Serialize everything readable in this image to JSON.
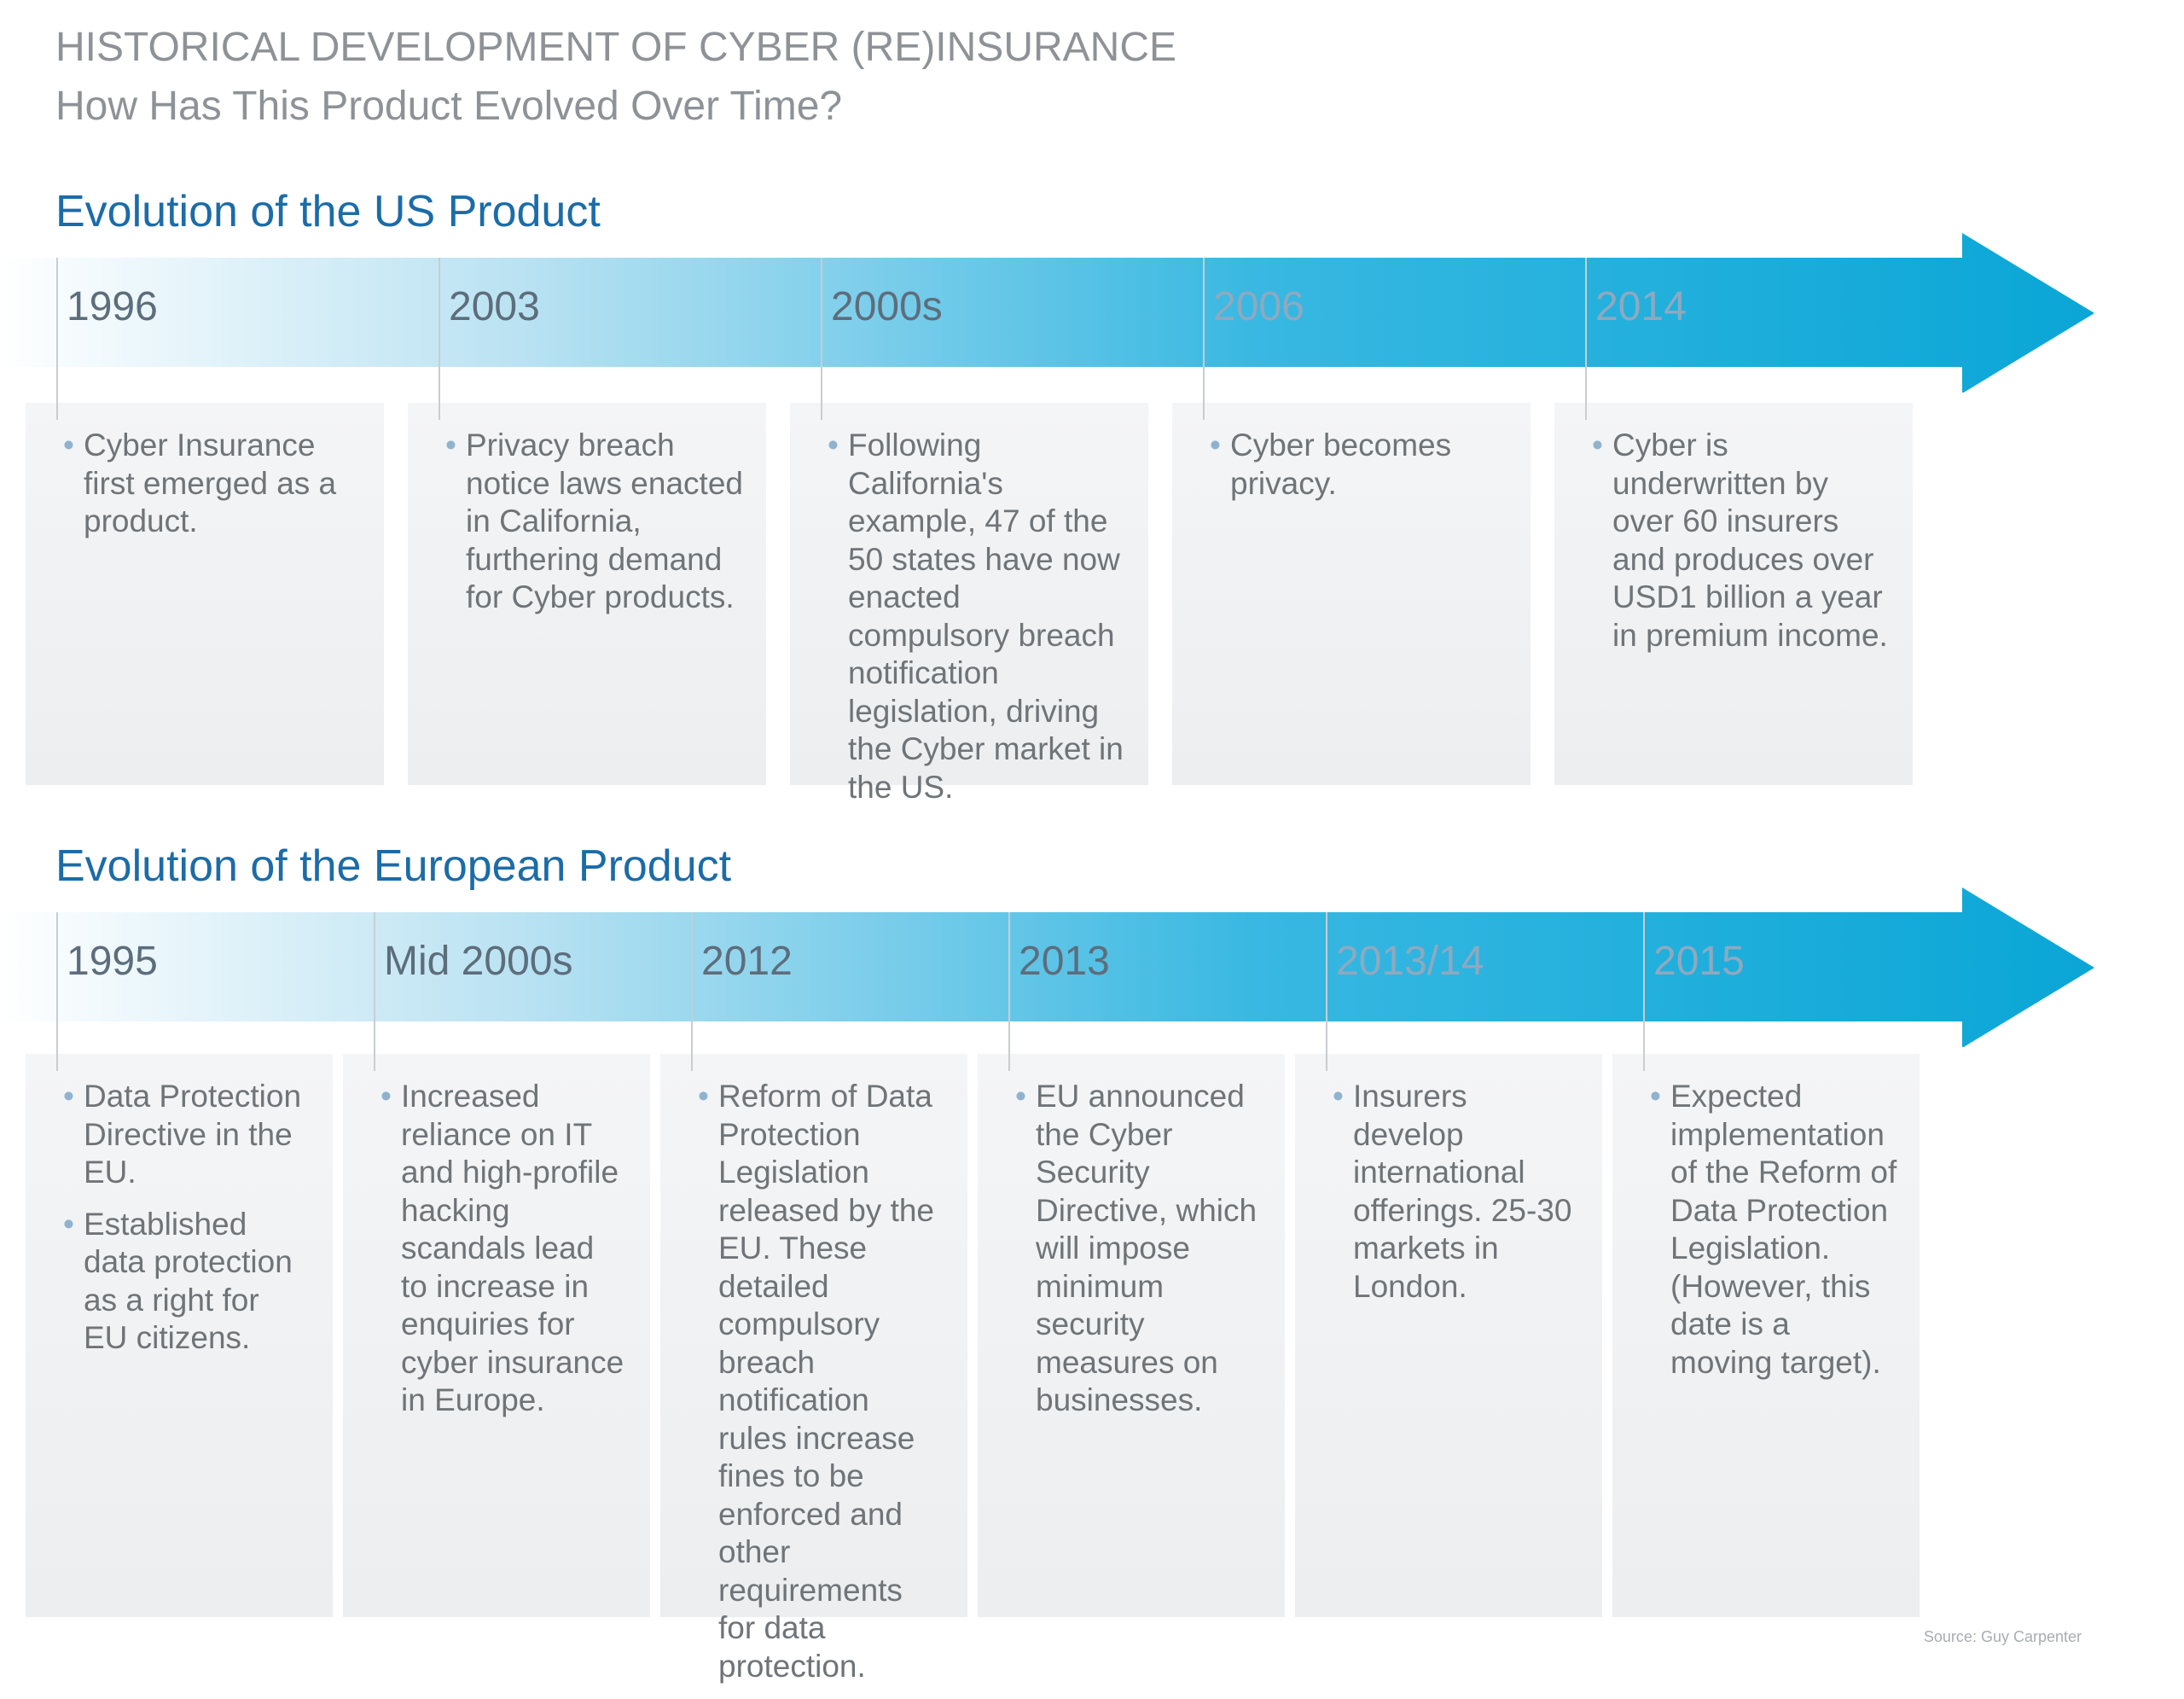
{
  "title": "HISTORICAL DEVELOPMENT OF CYBER (RE)INSURANCE",
  "subtitle": "How Has This Product Evolved Over Time?",
  "colors": {
    "heading": "#1b6ca8",
    "arrow_start": "#ffffff",
    "arrow_end": "#0aa6d6",
    "panel": "#eef0f2"
  },
  "us": {
    "heading": "Evolution of the US Product",
    "columns": [
      {
        "year": "1996",
        "bullets": [
          "Cyber Insurance first emerged as a product."
        ]
      },
      {
        "year": "2003",
        "bullets": [
          "Privacy breach notice laws enacted in California, furthering demand for Cyber products."
        ]
      },
      {
        "year": "2000s",
        "bullets": [
          "Following California's example, 47 of the 50 states have now enacted compulsory breach notification legislation, driving the Cyber market in the US."
        ]
      },
      {
        "year": "2006",
        "bullets": [
          "Cyber becomes privacy."
        ]
      },
      {
        "year": "2014",
        "bullets": [
          "Cyber is underwritten by over 60 insurers and produces over USD1 billion a year in premium income."
        ]
      }
    ]
  },
  "eu": {
    "heading": "Evolution of the European Product",
    "columns": [
      {
        "year": "1995",
        "bullets": [
          "Data Protection Directive in the EU.",
          "Established data protection as a right for EU citizens."
        ]
      },
      {
        "year": "Mid 2000s",
        "bullets": [
          "Increased reliance on IT and high-profile hacking scandals lead to increase in enquiries for cyber insurance in Europe."
        ]
      },
      {
        "year": "2012",
        "bullets": [
          "Reform of Data Protection Legislation released by the EU. These detailed compulsory breach notification rules increase fines to be enforced and other requirements for data protection."
        ]
      },
      {
        "year": "2013",
        "bullets": [
          "EU announced the Cyber Security Directive, which will impose minimum security measures on businesses."
        ]
      },
      {
        "year": "2013/14",
        "bullets": [
          "Insurers develop international offerings. 25-30 markets in London."
        ]
      },
      {
        "year": "2015",
        "bullets": [
          "Expected implementation of the Reform of Data Protection Legislation. (However, this date is a moving target)."
        ]
      }
    ]
  },
  "source": "Source: Guy Carpenter"
}
